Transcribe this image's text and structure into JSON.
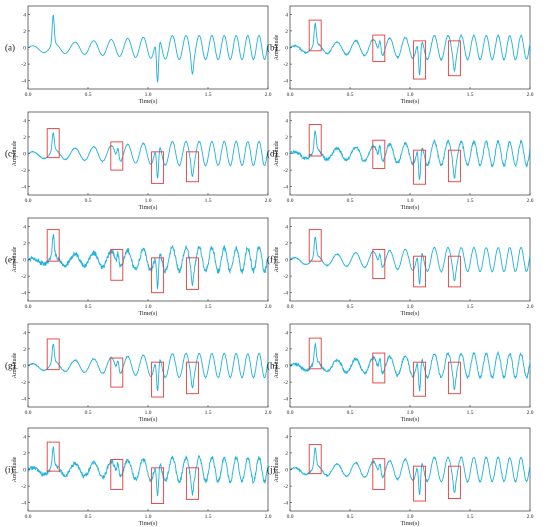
{
  "chart_data": [
    {
      "type": "line",
      "panel_label": "(a)",
      "xlabel": "Time(s)",
      "ylabel": "",
      "xlim": [
        0,
        2.0
      ],
      "ylim": [
        -5,
        5
      ],
      "xticks": [
        "0.0",
        "0.5",
        "1.0",
        "1.5",
        "2.0"
      ],
      "yticks": [
        "4",
        "2",
        "0",
        "-2",
        "-4"
      ],
      "spikes": [
        {
          "t": 0.21,
          "v": 3.9
        },
        {
          "t": 1.08,
          "v": -4.2
        },
        {
          "t": 1.37,
          "v": -3.2
        }
      ],
      "noise": 0,
      "boxes": []
    },
    {
      "type": "line",
      "panel_label": "(b)",
      "xlabel": "Time(s)",
      "ylabel": "Amplitude",
      "xlim": [
        0,
        2.0
      ],
      "ylim": [
        -5,
        5
      ],
      "xticks": [
        "0.0",
        "0.5",
        "1.0",
        "1.5",
        "2.0"
      ],
      "yticks": [
        "4",
        "2",
        "0",
        "-2",
        "-4"
      ],
      "spikes": [
        {
          "t": 0.21,
          "v": 2.9
        },
        {
          "t": 0.75,
          "v": 0.8
        },
        {
          "t": 1.08,
          "v": -3.3
        },
        {
          "t": 1.37,
          "v": -2.8
        }
      ],
      "noise": 0.08,
      "boxes": [
        [
          0.16,
          0.26,
          3.3,
          -0.4
        ],
        [
          0.69,
          0.79,
          1.5,
          -1.7
        ],
        [
          1.03,
          1.13,
          0.8,
          -3.8
        ],
        [
          1.32,
          1.42,
          0.8,
          -3.4
        ]
      ]
    },
    {
      "type": "line",
      "panel_label": "(c)",
      "xlabel": "Time(s)",
      "ylabel": "Amplitude",
      "xlim": [
        0,
        2.0
      ],
      "ylim": [
        -5,
        5
      ],
      "xticks": [
        "0.0",
        "0.5",
        "1.0",
        "1.5",
        "2.0"
      ],
      "yticks": [
        "4",
        "2",
        "0",
        "-2",
        "-4"
      ],
      "spikes": [
        {
          "t": 0.21,
          "v": 2.5
        },
        {
          "t": 0.75,
          "v": 0.6
        },
        {
          "t": 1.08,
          "v": -3.0
        },
        {
          "t": 1.37,
          "v": -2.8
        }
      ],
      "noise": 0.05,
      "boxes": [
        [
          0.16,
          0.26,
          3.0,
          -0.5
        ],
        [
          0.69,
          0.79,
          1.4,
          -2.0
        ],
        [
          1.03,
          1.13,
          0.2,
          -3.6
        ],
        [
          1.32,
          1.42,
          0.2,
          -3.4
        ]
      ]
    },
    {
      "type": "line",
      "panel_label": "(d)",
      "xlabel": "Time(s)",
      "ylabel": "Amplitude",
      "xlim": [
        0,
        2.0
      ],
      "ylim": [
        -5,
        5
      ],
      "xticks": [
        "0.0",
        "0.5",
        "1.0",
        "1.5",
        "2.0"
      ],
      "yticks": [
        "4",
        "2",
        "0",
        "-2",
        "-4"
      ],
      "spikes": [
        {
          "t": 0.21,
          "v": 2.8
        },
        {
          "t": 0.75,
          "v": 0.9
        },
        {
          "t": 1.08,
          "v": -3.2
        },
        {
          "t": 1.37,
          "v": -2.9
        }
      ],
      "noise": 0.18,
      "boxes": [
        [
          0.16,
          0.26,
          3.5,
          -0.3
        ],
        [
          0.69,
          0.79,
          1.6,
          -1.8
        ],
        [
          1.03,
          1.13,
          0.4,
          -3.7
        ],
        [
          1.32,
          1.42,
          0.4,
          -3.4
        ]
      ]
    },
    {
      "type": "line",
      "panel_label": "(e)",
      "xlabel": "Time(s)",
      "ylabel": "Amplitude",
      "xlim": [
        0,
        2.0
      ],
      "ylim": [
        -5,
        5
      ],
      "xticks": [
        "0.0",
        "0.5",
        "1.0",
        "1.5",
        "2.0"
      ],
      "yticks": [
        "4",
        "2",
        "0",
        "-2",
        "-4"
      ],
      "spikes": [
        {
          "t": 0.21,
          "v": 2.9
        },
        {
          "t": 0.75,
          "v": 0.7
        },
        {
          "t": 1.08,
          "v": -3.3
        },
        {
          "t": 1.37,
          "v": -3.0
        }
      ],
      "noise": 0.3,
      "boxes": [
        [
          0.16,
          0.26,
          3.6,
          -0.2
        ],
        [
          0.69,
          0.79,
          1.2,
          -2.5
        ],
        [
          1.03,
          1.13,
          0.2,
          -4.0
        ],
        [
          1.32,
          1.42,
          0.2,
          -3.6
        ]
      ]
    },
    {
      "type": "line",
      "panel_label": "(f)",
      "xlabel": "Time(s)",
      "ylabel": "Amplitude",
      "xlim": [
        0,
        2.0
      ],
      "ylim": [
        -5,
        5
      ],
      "xticks": [
        "0.0",
        "0.5",
        "1.0",
        "1.5",
        "2.0"
      ],
      "yticks": [
        "4",
        "2",
        "0",
        "-2",
        "-4"
      ],
      "spikes": [
        {
          "t": 0.21,
          "v": 2.7
        },
        {
          "t": 0.75,
          "v": 0.6
        },
        {
          "t": 1.08,
          "v": -3.0
        },
        {
          "t": 1.37,
          "v": -2.6
        }
      ],
      "noise": 0.05,
      "boxes": [
        [
          0.16,
          0.26,
          3.6,
          -0.2
        ],
        [
          0.69,
          0.79,
          1.2,
          -2.3
        ],
        [
          1.03,
          1.13,
          0.4,
          -3.3
        ],
        [
          1.32,
          1.42,
          0.4,
          -3.3
        ]
      ]
    },
    {
      "type": "line",
      "panel_label": "(g)",
      "xlabel": "Time(s)",
      "ylabel": "Amplitude",
      "xlim": [
        0,
        2.0
      ],
      "ylim": [
        -5,
        5
      ],
      "xticks": [
        "0.0",
        "0.5",
        "1.0",
        "1.5",
        "2.0"
      ],
      "yticks": [
        "4",
        "2",
        "0",
        "-2",
        "-4"
      ],
      "spikes": [
        {
          "t": 0.21,
          "v": 2.6
        },
        {
          "t": 0.75,
          "v": 0.5
        },
        {
          "t": 1.08,
          "v": -3.1
        },
        {
          "t": 1.37,
          "v": -2.7
        }
      ],
      "noise": 0.06,
      "boxes": [
        [
          0.16,
          0.26,
          3.2,
          -0.5
        ],
        [
          0.69,
          0.79,
          0.9,
          -2.6
        ],
        [
          1.03,
          1.13,
          0.4,
          -3.8
        ],
        [
          1.32,
          1.42,
          0.4,
          -3.4
        ]
      ]
    },
    {
      "type": "line",
      "panel_label": "(h)",
      "xlabel": "Time(s)",
      "ylabel": "Amplitude",
      "xlim": [
        0,
        2.0
      ],
      "ylim": [
        -5,
        5
      ],
      "xticks": [
        "0.0",
        "0.5",
        "1.0",
        "1.5",
        "2.0"
      ],
      "yticks": [
        "4",
        "2",
        "0",
        "-2",
        "-4"
      ],
      "spikes": [
        {
          "t": 0.21,
          "v": 2.5
        },
        {
          "t": 0.75,
          "v": 0.8
        },
        {
          "t": 1.08,
          "v": -3.0
        },
        {
          "t": 1.37,
          "v": -2.8
        }
      ],
      "noise": 0.16,
      "boxes": [
        [
          0.16,
          0.26,
          3.3,
          -0.4
        ],
        [
          0.69,
          0.79,
          1.5,
          -2.1
        ],
        [
          1.03,
          1.13,
          0.4,
          -3.7
        ],
        [
          1.32,
          1.42,
          0.4,
          -3.4
        ]
      ]
    },
    {
      "type": "line",
      "panel_label": "(i)",
      "xlabel": "Time(s)",
      "ylabel": "Amplitude",
      "xlim": [
        0,
        2.0
      ],
      "ylim": [
        -5,
        5
      ],
      "xticks": [
        "0.0",
        "0.5",
        "1.0",
        "1.5",
        "2.0"
      ],
      "yticks": [
        "4",
        "2",
        "0",
        "-2",
        "-4"
      ],
      "spikes": [
        {
          "t": 0.21,
          "v": 2.7
        },
        {
          "t": 0.75,
          "v": 0.7
        },
        {
          "t": 1.08,
          "v": -3.2
        },
        {
          "t": 1.37,
          "v": -2.9
        }
      ],
      "noise": 0.25,
      "boxes": [
        [
          0.16,
          0.26,
          3.3,
          -0.2
        ],
        [
          0.69,
          0.79,
          1.2,
          -2.4
        ],
        [
          1.03,
          1.13,
          0.2,
          -4.1
        ],
        [
          1.32,
          1.42,
          0.2,
          -3.6
        ]
      ]
    },
    {
      "type": "line",
      "panel_label": "(j)",
      "xlabel": "Time(s)",
      "ylabel": "Amplitude",
      "xlim": [
        0,
        2.0
      ],
      "ylim": [
        -5,
        5
      ],
      "xticks": [
        "0.0",
        "0.5",
        "1.0",
        "1.5",
        "2.0"
      ],
      "yticks": [
        "4",
        "2",
        "0",
        "-2",
        "-4"
      ],
      "spikes": [
        {
          "t": 0.21,
          "v": 2.6
        },
        {
          "t": 0.75,
          "v": 0.7
        },
        {
          "t": 1.08,
          "v": -3.1
        },
        {
          "t": 1.37,
          "v": -2.8
        }
      ],
      "noise": 0.08,
      "boxes": [
        [
          0.16,
          0.26,
          3.0,
          -0.5
        ],
        [
          0.69,
          0.79,
          1.3,
          -2.4
        ],
        [
          1.03,
          1.13,
          0.4,
          -3.8
        ],
        [
          1.32,
          1.42,
          0.4,
          -3.5
        ]
      ]
    }
  ],
  "colors": {
    "signal": "#1fb1dc",
    "highlight_box": "#e23b3b",
    "frame": "#333333"
  }
}
